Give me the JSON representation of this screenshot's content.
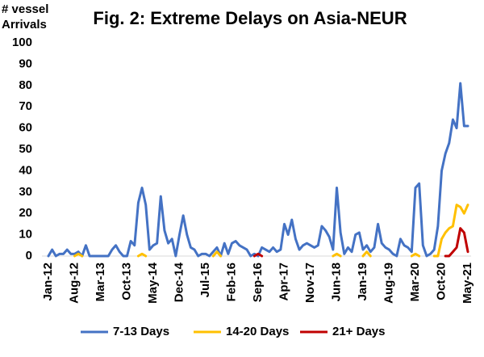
{
  "chart_data": {
    "type": "line",
    "title": "Fig. 2: Extreme Delays on Asia-NEUR",
    "ylabel": "# vessel Arrivals",
    "categories": [
      "Jan-12",
      null,
      null,
      null,
      null,
      null,
      null,
      "Aug-12",
      null,
      null,
      null,
      null,
      null,
      null,
      "Mar-13",
      null,
      null,
      null,
      null,
      null,
      null,
      "Oct-13",
      null,
      null,
      null,
      null,
      null,
      null,
      "May-14",
      null,
      null,
      null,
      null,
      null,
      null,
      "Dec-14",
      null,
      null,
      null,
      null,
      null,
      null,
      "Jul-15",
      null,
      null,
      null,
      null,
      null,
      null,
      "Feb-16",
      null,
      null,
      null,
      null,
      null,
      null,
      "Sep-16",
      null,
      null,
      null,
      null,
      null,
      null,
      "Apr-17",
      null,
      null,
      null,
      null,
      null,
      null,
      "Nov-17",
      null,
      null,
      null,
      null,
      null,
      null,
      "Jun-18",
      null,
      null,
      null,
      null,
      null,
      null,
      "Jan-19",
      null,
      null,
      null,
      null,
      null,
      null,
      "Aug-19",
      null,
      null,
      null,
      null,
      null,
      null,
      "Mar-20",
      null,
      null,
      null,
      null,
      null,
      null,
      "Oct-20",
      null,
      null,
      null,
      null,
      null,
      null,
      "May-21"
    ],
    "series": [
      {
        "name": "7-13 Days",
        "color": "#4472c4",
        "values": [
          0,
          3,
          0,
          1,
          1,
          3,
          1,
          1,
          2,
          0,
          5,
          0,
          0,
          0,
          0,
          0,
          0,
          3,
          5,
          2,
          0,
          0,
          7,
          5,
          25,
          32,
          24,
          3,
          5,
          6,
          28,
          12,
          6,
          8,
          0,
          10,
          19,
          10,
          4,
          3,
          0,
          1,
          1,
          0,
          2,
          4,
          0,
          6,
          1,
          6,
          7,
          5,
          4,
          3,
          0,
          1,
          0,
          4,
          3,
          2,
          4,
          2,
          3,
          15,
          10,
          17,
          8,
          3,
          5,
          6,
          5,
          4,
          5,
          14,
          12,
          9,
          3,
          32,
          11,
          1,
          4,
          2,
          10,
          11,
          3,
          5,
          2,
          4,
          15,
          6,
          4,
          3,
          1,
          0,
          8,
          5,
          4,
          2,
          32,
          34,
          5,
          0,
          1,
          3,
          14,
          40,
          48,
          53,
          64,
          60,
          81,
          61,
          61
        ]
      },
      {
        "name": "14-20 Days",
        "color": "#ffc000",
        "values": [
          null,
          null,
          null,
          null,
          null,
          null,
          null,
          0,
          1,
          0,
          null,
          null,
          null,
          null,
          null,
          null,
          null,
          null,
          null,
          null,
          null,
          null,
          null,
          null,
          0,
          1,
          0,
          null,
          null,
          null,
          null,
          null,
          null,
          null,
          null,
          null,
          null,
          null,
          null,
          null,
          null,
          null,
          null,
          null,
          0,
          2,
          0,
          null,
          null,
          null,
          null,
          null,
          null,
          null,
          null,
          null,
          null,
          null,
          null,
          null,
          null,
          null,
          null,
          null,
          null,
          null,
          null,
          null,
          null,
          null,
          null,
          null,
          null,
          null,
          null,
          null,
          0,
          1,
          0,
          null,
          null,
          null,
          null,
          null,
          0,
          2,
          0,
          null,
          null,
          null,
          null,
          null,
          null,
          null,
          null,
          null,
          null,
          0,
          1,
          0,
          null,
          null,
          null,
          0,
          0,
          8,
          11,
          13,
          14,
          24,
          23,
          20,
          24
        ]
      },
      {
        "name": "21+ Days",
        "color": "#c00000",
        "values": [
          null,
          null,
          null,
          null,
          null,
          null,
          null,
          null,
          null,
          null,
          null,
          null,
          null,
          null,
          null,
          null,
          null,
          null,
          null,
          null,
          null,
          null,
          null,
          null,
          null,
          null,
          null,
          null,
          null,
          null,
          null,
          null,
          null,
          null,
          null,
          null,
          null,
          null,
          null,
          null,
          null,
          null,
          null,
          null,
          null,
          null,
          null,
          null,
          null,
          null,
          null,
          null,
          null,
          null,
          null,
          0,
          1,
          0,
          null,
          null,
          null,
          null,
          null,
          null,
          null,
          null,
          null,
          null,
          null,
          null,
          null,
          null,
          null,
          null,
          null,
          null,
          null,
          null,
          null,
          null,
          null,
          null,
          null,
          null,
          null,
          null,
          null,
          null,
          null,
          null,
          null,
          null,
          null,
          null,
          null,
          null,
          null,
          null,
          null,
          null,
          null,
          null,
          null,
          null,
          null,
          null,
          0,
          0,
          2,
          4,
          13,
          11,
          2
        ]
      }
    ],
    "ylim": [
      0,
      100
    ],
    "yticks": [
      0,
      10,
      20,
      30,
      40,
      50,
      60,
      70,
      80,
      90,
      100
    ],
    "grid": false,
    "legend": "bottom"
  }
}
